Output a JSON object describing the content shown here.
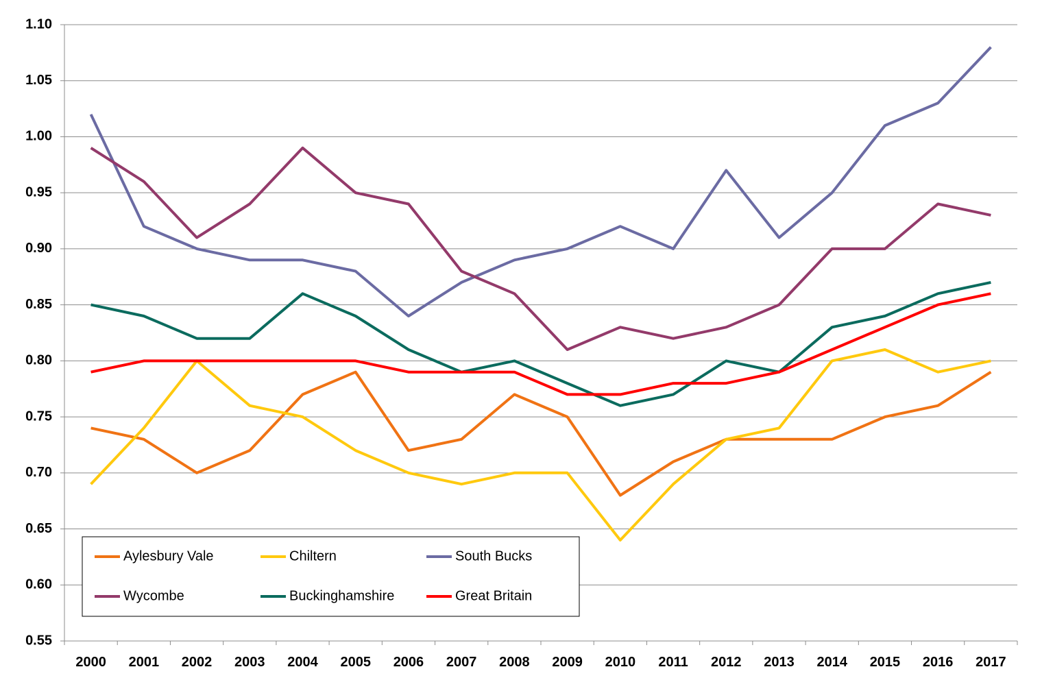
{
  "chart_data": {
    "type": "line",
    "title": "",
    "xlabel": "",
    "ylabel": "",
    "x": [
      "2000",
      "2001",
      "2002",
      "2003",
      "2004",
      "2005",
      "2006",
      "2007",
      "2008",
      "2009",
      "2010",
      "2011",
      "2012",
      "2013",
      "2014",
      "2015",
      "2016",
      "2017"
    ],
    "ylim": [
      0.55,
      1.1
    ],
    "yticks": [
      "0.55",
      "0.60",
      "0.65",
      "0.70",
      "0.75",
      "0.80",
      "0.85",
      "0.90",
      "0.95",
      "1.00",
      "1.05",
      "1.10"
    ],
    "grid": true,
    "legend_position": "bottom-left",
    "series": [
      {
        "name": "Aylesbury Vale",
        "color": "#F07314",
        "values": [
          0.74,
          0.73,
          0.7,
          0.72,
          0.77,
          0.79,
          0.72,
          0.73,
          0.77,
          0.75,
          0.68,
          0.71,
          0.73,
          0.73,
          0.73,
          0.75,
          0.76,
          0.79
        ]
      },
      {
        "name": "Chiltern",
        "color": "#FFC90E",
        "values": [
          0.69,
          0.74,
          0.8,
          0.76,
          0.75,
          0.72,
          0.7,
          0.69,
          0.7,
          0.7,
          0.64,
          0.69,
          0.73,
          0.74,
          0.8,
          0.81,
          0.79,
          0.8
        ]
      },
      {
        "name": "South Bucks",
        "color": "#6B6BA3",
        "values": [
          1.02,
          0.92,
          0.9,
          0.89,
          0.89,
          0.88,
          0.84,
          0.87,
          0.89,
          0.9,
          0.92,
          0.9,
          0.97,
          0.91,
          0.95,
          1.01,
          1.03,
          1.08
        ]
      },
      {
        "name": "Wycombe",
        "color": "#933A6A",
        "values": [
          0.99,
          0.96,
          0.91,
          0.94,
          0.99,
          0.95,
          0.94,
          0.88,
          0.86,
          0.81,
          0.83,
          0.82,
          0.83,
          0.85,
          0.9,
          0.9,
          0.94,
          0.93
        ]
      },
      {
        "name": "Buckinghamshire",
        "color": "#0B6B5E",
        "values": [
          0.85,
          0.84,
          0.82,
          0.82,
          0.86,
          0.84,
          0.81,
          0.79,
          0.8,
          0.78,
          0.76,
          0.77,
          0.8,
          0.79,
          0.83,
          0.84,
          0.86,
          0.87
        ]
      },
      {
        "name": "Great Britain",
        "color": "#FF0000",
        "values": [
          0.79,
          0.8,
          0.8,
          0.8,
          0.8,
          0.8,
          0.79,
          0.79,
          0.79,
          0.77,
          0.77,
          0.78,
          0.78,
          0.79,
          0.81,
          0.83,
          0.85,
          0.86
        ]
      }
    ]
  }
}
